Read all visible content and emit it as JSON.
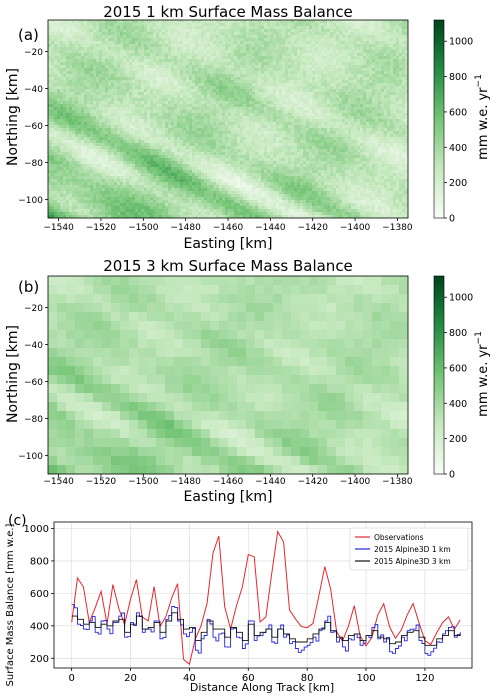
{
  "panels": [
    {
      "letter": "(a)",
      "title": "2015 1 km Surface Mass Balance",
      "xlabel": "Easting [km]",
      "ylabel": "Northing [km]",
      "cbar_label": "mm w.e. yr",
      "cbar_label_sup": "−1",
      "resolution_km": 1
    },
    {
      "letter": "(b)",
      "title": "2015 3 km Surface Mass Balance",
      "xlabel": "Easting [km]",
      "ylabel": "Northing [km]",
      "cbar_label": "mm w.e. yr",
      "cbar_label_sup": "−1",
      "resolution_km": 3
    }
  ],
  "line_panel": {
    "letter": "(c)"
  },
  "chart_data": [
    {
      "type": "heatmap",
      "title": "2015 1 km Surface Mass Balance",
      "xlabel": "Easting [km]",
      "ylabel": "Northing [km]",
      "xlim": [
        -1545,
        -1375
      ],
      "ylim": [
        -110,
        -3
      ],
      "xticks": [
        -1540,
        -1520,
        -1500,
        -1480,
        -1460,
        -1440,
        -1420,
        -1400,
        -1380
      ],
      "yticks": [
        -20,
        -40,
        -60,
        -80,
        -100
      ],
      "colorbar": {
        "label": "mm w.e. yr⁻¹",
        "range": [
          0,
          1120
        ],
        "ticks": [
          0,
          200,
          400,
          600,
          800,
          1000
        ],
        "colormap": "white-to-dark-green"
      }
    },
    {
      "type": "heatmap",
      "title": "2015 3 km Surface Mass Balance",
      "xlabel": "Easting [km]",
      "ylabel": "Northing [km]",
      "xlim": [
        -1545,
        -1375
      ],
      "ylim": [
        -110,
        -3
      ],
      "xticks": [
        -1540,
        -1520,
        -1500,
        -1480,
        -1460,
        -1440,
        -1420,
        -1400,
        -1380
      ],
      "yticks": [
        -20,
        -40,
        -60,
        -80,
        -100
      ],
      "colorbar": {
        "label": "mm w.e. yr⁻¹",
        "range": [
          0,
          1120
        ],
        "ticks": [
          0,
          200,
          400,
          600,
          800,
          1000
        ],
        "colormap": "white-to-dark-green"
      }
    },
    {
      "type": "line",
      "xlabel": "Distance Along Track [km]",
      "ylabel": "Surface Mass Balance [mm w.e.]",
      "xlim": [
        -6,
        136
      ],
      "ylim": [
        140,
        1040
      ],
      "xticks": [
        0,
        20,
        40,
        60,
        80,
        100,
        120
      ],
      "yticks": [
        200,
        400,
        600,
        800,
        1000
      ],
      "grid": true,
      "legend": "top-right",
      "x": [
        0,
        2,
        4,
        6,
        8,
        10,
        12,
        14,
        16,
        18,
        20,
        22,
        24,
        26,
        28,
        30,
        32,
        34,
        36,
        38,
        40,
        42,
        44,
        46,
        48,
        50,
        52,
        54,
        56,
        58,
        60,
        62,
        64,
        66,
        68,
        70,
        72,
        74,
        76,
        78,
        80,
        82,
        84,
        86,
        88,
        90,
        92,
        94,
        96,
        98,
        100,
        102,
        104,
        106,
        108,
        110,
        112,
        114,
        116,
        118,
        120,
        122,
        124,
        126,
        128,
        130,
        132
      ],
      "series": [
        {
          "name": "Observations",
          "color": "#e8262b",
          "values": [
            420,
            700,
            640,
            420,
            520,
            620,
            420,
            660,
            500,
            410,
            570,
            690,
            460,
            430,
            640,
            390,
            460,
            580,
            660,
            200,
            170,
            320,
            410,
            540,
            840,
            960,
            520,
            380,
            520,
            640,
            840,
            820,
            420,
            450,
            720,
            990,
            920,
            500,
            450,
            390,
            380,
            420,
            580,
            760,
            620,
            360,
            300,
            390,
            520,
            330,
            270,
            330,
            460,
            540,
            400,
            320,
            380,
            460,
            540,
            420,
            300,
            280,
            350,
            420,
            460,
            380,
            430
          ]
        },
        {
          "name": "2015 Alpine3D 1 km",
          "color": "#2424d8",
          "values": [
            530,
            410,
            380,
            430,
            360,
            430,
            380,
            420,
            460,
            330,
            420,
            480,
            360,
            380,
            430,
            320,
            440,
            520,
            430,
            350,
            360,
            250,
            320,
            440,
            330,
            350,
            270,
            380,
            330,
            260,
            430,
            310,
            340,
            380,
            300,
            380,
            330,
            290,
            260,
            250,
            280,
            330,
            370,
            430,
            360,
            300,
            270,
            320,
            350,
            280,
            340,
            390,
            320,
            300,
            240,
            260,
            330,
            370,
            380,
            310,
            230,
            240,
            300,
            350,
            390,
            330,
            360
          ]
        },
        {
          "name": "2015 Alpine3D 3 km",
          "color": "#111111",
          "values": [
            460,
            440,
            410,
            420,
            390,
            410,
            400,
            430,
            440,
            360,
            410,
            460,
            380,
            390,
            420,
            360,
            430,
            480,
            440,
            380,
            390,
            310,
            360,
            430,
            380,
            380,
            330,
            390,
            360,
            310,
            410,
            340,
            360,
            380,
            330,
            380,
            350,
            320,
            300,
            300,
            320,
            350,
            380,
            420,
            370,
            330,
            310,
            340,
            350,
            310,
            340,
            370,
            330,
            320,
            290,
            300,
            340,
            360,
            370,
            330,
            280,
            280,
            320,
            340,
            370,
            340,
            350
          ]
        }
      ]
    }
  ]
}
